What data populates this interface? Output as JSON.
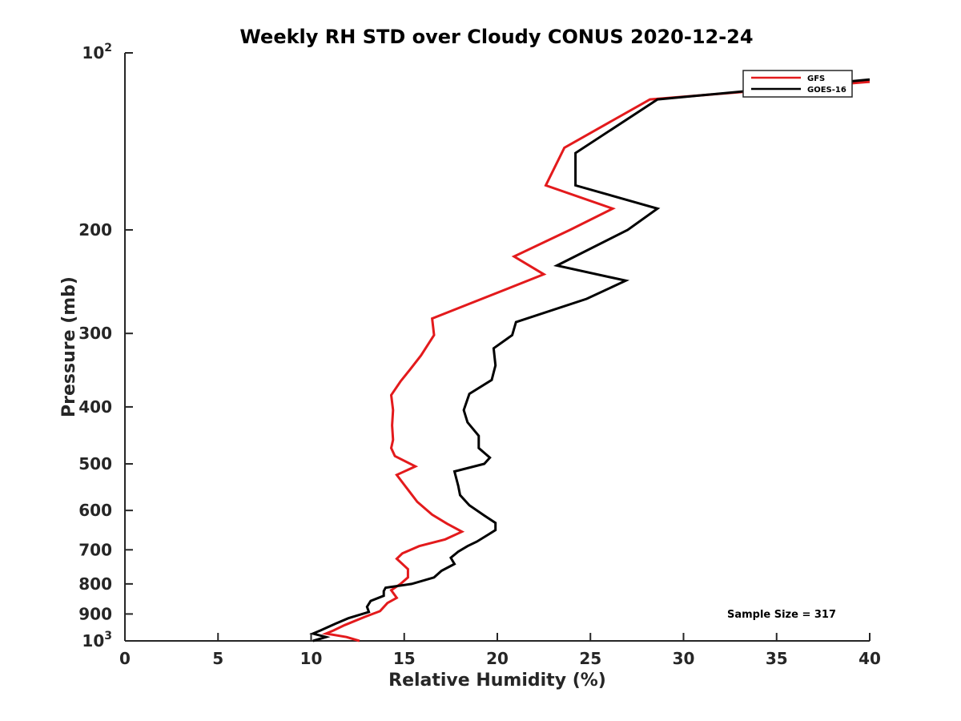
{
  "chart_data": {
    "type": "line",
    "title": "Weekly RH STD over Cloudy CONUS 2020-12-24",
    "xlabel": "Relative Humidity (%)",
    "ylabel": "Pressure (mb)",
    "xlim": [
      0,
      40
    ],
    "ylim": [
      100,
      1000
    ],
    "y_scale": "log",
    "y_reversed": true,
    "grid": false,
    "legend_position": "top-right",
    "x_ticks": [
      "0",
      "5",
      "10",
      "15",
      "20",
      "25",
      "30",
      "35",
      "40"
    ],
    "y_ticks": [
      {
        "value": 100,
        "base": "10",
        "exp": "2"
      },
      {
        "value": 200,
        "label": "200"
      },
      {
        "value": 300,
        "label": "300"
      },
      {
        "value": 400,
        "label": "400"
      },
      {
        "value": 500,
        "label": "500"
      },
      {
        "value": 600,
        "label": "600"
      },
      {
        "value": 700,
        "label": "700"
      },
      {
        "value": 800,
        "label": "800"
      },
      {
        "value": 900,
        "label": "900"
      },
      {
        "value": 1000,
        "base": "10",
        "exp": "3"
      }
    ],
    "annotation": "Sample Size = 317",
    "series": [
      {
        "name": "GFS",
        "color": "#e31a1c",
        "points": [
          [
            40.0,
            112
          ],
          [
            28.2,
            120
          ],
          [
            23.6,
            145
          ],
          [
            22.6,
            168
          ],
          [
            26.2,
            184
          ],
          [
            23.9,
            200
          ],
          [
            20.9,
            222
          ],
          [
            22.5,
            238
          ],
          [
            16.5,
            283
          ],
          [
            16.6,
            302
          ],
          [
            15.9,
            327
          ],
          [
            15.3,
            346
          ],
          [
            14.8,
            362
          ],
          [
            14.3,
            382
          ],
          [
            14.4,
            405
          ],
          [
            14.35,
            430
          ],
          [
            14.4,
            455
          ],
          [
            14.3,
            470
          ],
          [
            14.5,
            485
          ],
          [
            15.6,
            505
          ],
          [
            14.6,
            522
          ],
          [
            15.2,
            553
          ],
          [
            15.7,
            580
          ],
          [
            16.5,
            610
          ],
          [
            17.3,
            632
          ],
          [
            18.1,
            652
          ],
          [
            17.2,
            672
          ],
          [
            15.8,
            690
          ],
          [
            14.9,
            710
          ],
          [
            14.6,
            725
          ],
          [
            15.2,
            755
          ],
          [
            15.2,
            780
          ],
          [
            14.8,
            800
          ],
          [
            14.3,
            820
          ],
          [
            14.6,
            845
          ],
          [
            14.1,
            862
          ],
          [
            13.7,
            890
          ],
          [
            12.9,
            910
          ],
          [
            11.8,
            940
          ],
          [
            11.2,
            960
          ],
          [
            10.8,
            972
          ],
          [
            11.9,
            985
          ],
          [
            12.6,
            1000
          ]
        ]
      },
      {
        "name": "GOES-16",
        "color": "#000000",
        "points": [
          [
            40.0,
            111
          ],
          [
            28.6,
            120
          ],
          [
            24.2,
            148
          ],
          [
            24.2,
            168
          ],
          [
            28.6,
            184
          ],
          [
            27.0,
            200
          ],
          [
            23.2,
            230
          ],
          [
            26.9,
            244
          ],
          [
            24.8,
            262
          ],
          [
            21.0,
            287
          ],
          [
            20.8,
            302
          ],
          [
            19.8,
            318
          ],
          [
            19.9,
            340
          ],
          [
            19.7,
            360
          ],
          [
            18.5,
            380
          ],
          [
            18.2,
            405
          ],
          [
            18.4,
            425
          ],
          [
            19.0,
            448
          ],
          [
            19.0,
            470
          ],
          [
            19.6,
            488
          ],
          [
            19.3,
            500
          ],
          [
            17.7,
            515
          ],
          [
            17.9,
            545
          ],
          [
            18.0,
            565
          ],
          [
            18.5,
            588
          ],
          [
            19.3,
            612
          ],
          [
            19.9,
            630
          ],
          [
            19.9,
            648
          ],
          [
            19.5,
            660
          ],
          [
            18.9,
            678
          ],
          [
            18.4,
            690
          ],
          [
            17.9,
            705
          ],
          [
            17.5,
            722
          ],
          [
            17.7,
            740
          ],
          [
            17.0,
            760
          ],
          [
            16.6,
            780
          ],
          [
            15.4,
            800
          ],
          [
            14.0,
            812
          ],
          [
            13.9,
            823
          ],
          [
            13.9,
            838
          ],
          [
            13.2,
            855
          ],
          [
            13.0,
            875
          ],
          [
            13.1,
            893
          ],
          [
            12.0,
            915
          ],
          [
            11.3,
            935
          ],
          [
            10.5,
            960
          ],
          [
            10.1,
            972
          ],
          [
            10.8,
            985
          ],
          [
            10.1,
            1000
          ]
        ]
      }
    ]
  }
}
